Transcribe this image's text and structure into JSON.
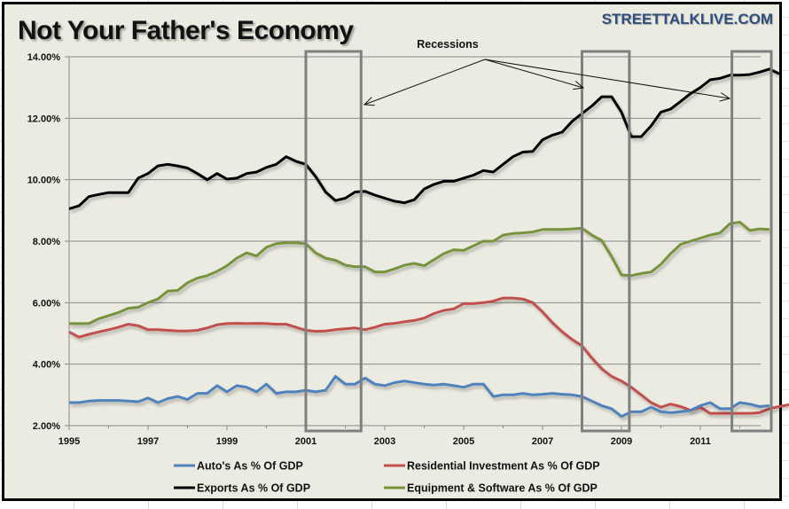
{
  "chart_data": {
    "type": "line",
    "title": "Not Your Father's Economy",
    "source_label": "STREETTALKLIVE.COM",
    "xlabel": "",
    "ylabel": "",
    "x_start": 1995.0,
    "x_step": 0.25,
    "xlim": [
      1995,
      2012.75
    ],
    "ylim": [
      2,
      14
    ],
    "grid": true,
    "y_ticks": [
      2,
      4,
      6,
      8,
      10,
      12,
      14
    ],
    "y_tick_labels": [
      "2.00%",
      "4.00%",
      "6.00%",
      "8.00%",
      "10.00%",
      "12.00%",
      "14.00%"
    ],
    "x_ticks": [
      1995,
      1997,
      1999,
      2001,
      2003,
      2005,
      2007,
      2009,
      2011
    ],
    "x_tick_labels": [
      "1995",
      "1997",
      "1999",
      "2001",
      "2003",
      "2005",
      "2007",
      "2009",
      "2011"
    ],
    "legend_position": "bottom",
    "annotations": [
      {
        "text": "Recessions",
        "type": "label"
      }
    ],
    "recession_periods": [
      {
        "start": 2001.0,
        "end": 2002.4
      },
      {
        "start": 2008.0,
        "end": 2009.2
      },
      {
        "start": 2011.8,
        "end": 2012.9
      }
    ],
    "series": [
      {
        "name": "Auto's As % Of GDP",
        "color": "#4f81bd",
        "values": [
          2.75,
          2.75,
          2.8,
          2.82,
          2.82,
          2.82,
          2.8,
          2.78,
          2.9,
          2.75,
          2.88,
          2.95,
          2.85,
          3.05,
          3.05,
          3.3,
          3.1,
          3.3,
          3.25,
          3.1,
          3.35,
          3.05,
          3.1,
          3.1,
          3.15,
          3.1,
          3.15,
          3.6,
          3.35,
          3.35,
          3.55,
          3.35,
          3.3,
          3.4,
          3.45,
          3.4,
          3.35,
          3.32,
          3.35,
          3.3,
          3.25,
          3.35,
          3.35,
          2.95,
          3.0,
          3.0,
          3.05,
          3.0,
          3.02,
          3.05,
          3.02,
          3.0,
          2.95,
          2.8,
          2.65,
          2.55,
          2.3,
          2.45,
          2.45,
          2.6,
          2.45,
          2.42,
          2.45,
          2.5,
          2.65,
          2.75,
          2.55,
          2.55,
          2.75,
          2.7,
          2.62,
          2.65
        ]
      },
      {
        "name": "Residential Investment As % Of GDP",
        "color": "#c0504d",
        "values": [
          5.05,
          4.88,
          4.97,
          5.05,
          5.12,
          5.2,
          5.3,
          5.25,
          5.12,
          5.12,
          5.1,
          5.08,
          5.08,
          5.1,
          5.18,
          5.28,
          5.32,
          5.33,
          5.32,
          5.33,
          5.32,
          5.3,
          5.3,
          5.2,
          5.1,
          5.07,
          5.08,
          5.12,
          5.15,
          5.18,
          5.12,
          5.2,
          5.3,
          5.33,
          5.38,
          5.42,
          5.5,
          5.65,
          5.75,
          5.8,
          5.97,
          5.97,
          6.0,
          6.05,
          6.15,
          6.15,
          6.12,
          6.0,
          5.7,
          5.35,
          5.05,
          4.8,
          4.6,
          4.2,
          3.85,
          3.6,
          3.45,
          3.25,
          3.0,
          2.75,
          2.6,
          2.7,
          2.62,
          2.5,
          2.6,
          2.4,
          2.4,
          2.4,
          2.4,
          2.4,
          2.42,
          2.55,
          2.62,
          2.68
        ]
      },
      {
        "name": "Exports As % Of GDP",
        "color": "#000000",
        "values": [
          9.05,
          9.15,
          9.45,
          9.52,
          9.58,
          9.58,
          9.58,
          10.05,
          10.2,
          10.45,
          10.5,
          10.45,
          10.38,
          10.2,
          10.0,
          10.2,
          10.02,
          10.05,
          10.2,
          10.25,
          10.4,
          10.5,
          10.75,
          10.6,
          10.5,
          10.1,
          9.6,
          9.32,
          9.4,
          9.6,
          9.62,
          9.5,
          9.4,
          9.3,
          9.25,
          9.35,
          9.7,
          9.85,
          9.95,
          9.95,
          10.05,
          10.15,
          10.3,
          10.25,
          10.5,
          10.75,
          10.9,
          10.92,
          11.3,
          11.45,
          11.55,
          11.9,
          12.15,
          12.4,
          12.7,
          12.7,
          12.2,
          11.4,
          11.4,
          11.75,
          12.2,
          12.3,
          12.55,
          12.8,
          13.0,
          13.25,
          13.3,
          13.4,
          13.4,
          13.42,
          13.5,
          13.6,
          13.45
        ]
      },
      {
        "name": "Equipment & Software As % Of GDP",
        "color": "#77933c",
        "values": [
          5.32,
          5.32,
          5.32,
          5.48,
          5.58,
          5.68,
          5.82,
          5.85,
          6.0,
          6.12,
          6.38,
          6.4,
          6.65,
          6.8,
          6.88,
          7.02,
          7.2,
          7.45,
          7.62,
          7.52,
          7.8,
          7.92,
          7.95,
          7.95,
          7.92,
          7.62,
          7.45,
          7.38,
          7.22,
          7.17,
          7.17,
          7.0,
          7.0,
          7.1,
          7.22,
          7.28,
          7.2,
          7.4,
          7.6,
          7.72,
          7.7,
          7.85,
          8.0,
          8.0,
          8.2,
          8.25,
          8.27,
          8.3,
          8.38,
          8.38,
          8.38,
          8.4,
          8.42,
          8.2,
          8.02,
          7.5,
          6.9,
          6.88,
          6.95,
          7.0,
          7.25,
          7.6,
          7.9,
          8.0,
          8.1,
          8.2,
          8.27,
          8.57,
          8.62,
          8.35,
          8.4,
          8.38
        ]
      }
    ],
    "legend": [
      {
        "label": "Auto's As % Of GDP",
        "color": "#4f81bd"
      },
      {
        "label": "Residential Investment As % Of GDP",
        "color": "#c0504d"
      },
      {
        "label": "Exports As % Of GDP",
        "color": "#000000"
      },
      {
        "label": "Equipment & Software As % Of GDP",
        "color": "#77933c"
      }
    ]
  },
  "colors": {
    "background": "#ecebe1",
    "gridline": "#8a8a8a",
    "recession_box": "#808080",
    "brand": "#2e4e7e"
  }
}
